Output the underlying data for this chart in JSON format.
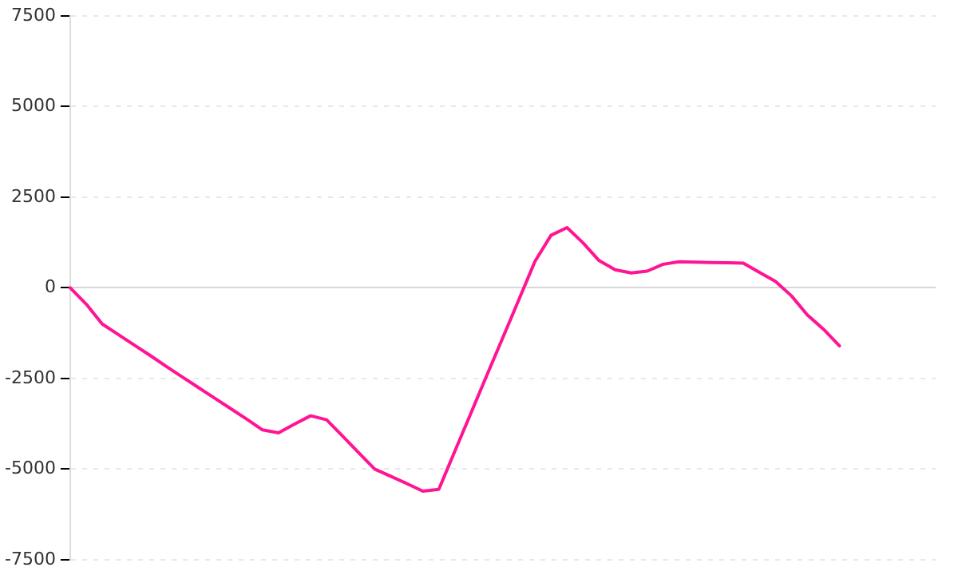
{
  "chart_data": {
    "type": "line",
    "categories": [
      null,
      null,
      null,
      null,
      null,
      null,
      null,
      null,
      null,
      null,
      null,
      null,
      null,
      null,
      null,
      null,
      null,
      null,
      null,
      null,
      null,
      null,
      null,
      null,
      null,
      null,
      null,
      null,
      null,
      null,
      null,
      null,
      null,
      null,
      null,
      null,
      null,
      null,
      null,
      null,
      null,
      null,
      null,
      null,
      null,
      null,
      null,
      null,
      null,
      null,
      null,
      null,
      null,
      null,
      null
    ],
    "series": [
      {
        "color": "#ff1493",
        "values": [
          0,
          -450,
          -1000,
          -1290,
          -1580,
          -1870,
          -2170,
          -2460,
          -2750,
          -3040,
          -3330,
          -3620,
          -3920,
          -4000,
          -3760,
          -3530,
          -3640,
          -4090,
          -4550,
          -5000,
          -5200,
          -5400,
          -5610,
          -5560,
          -4510,
          -3460,
          -2410,
          -1370,
          -320,
          730,
          1450,
          1660,
          1240,
          750,
          500,
          410,
          460,
          650,
          720,
          710,
          700,
          690,
          680,
          430,
          180,
          -220,
          -750,
          -1140,
          -1600,
          null,
          null,
          null,
          null,
          null,
          null
        ]
      }
    ],
    "ylim": [
      -7500,
      7500
    ],
    "yticks": [
      -7500,
      -5000,
      -2500,
      0,
      2500,
      5000,
      7500
    ],
    "grid": "y",
    "tick_labels": "y",
    "marker": "none",
    "line_style": "solid"
  }
}
